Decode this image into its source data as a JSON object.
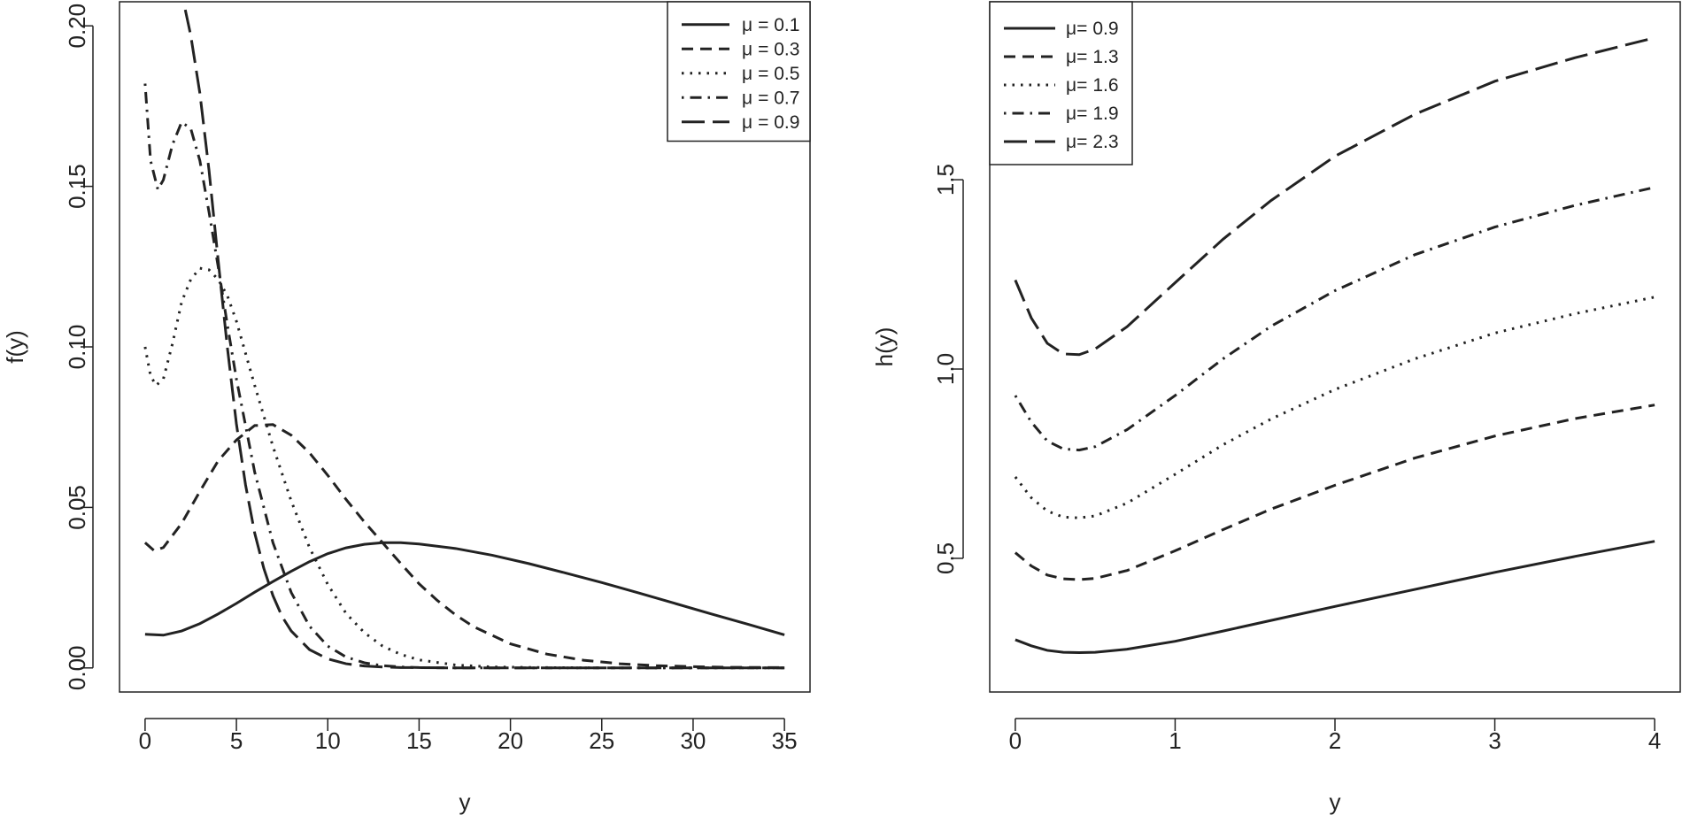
{
  "chart_data": [
    {
      "type": "line",
      "title": "",
      "xlabel": "y",
      "ylabel": "f(y)",
      "xlim": [
        -1.4,
        36.4
      ],
      "ylim": [
        -0.0075,
        0.2075
      ],
      "xticks": [
        0,
        5,
        10,
        15,
        20,
        25,
        30,
        35
      ],
      "xtick_labels": [
        "0",
        "5",
        "10",
        "15",
        "20",
        "25",
        "30",
        "35"
      ],
      "yticks": [
        0.0,
        0.05,
        0.1,
        0.15,
        0.2
      ],
      "ytick_labels": [
        "0.00",
        "0.05",
        "0.10",
        "0.15",
        "0.20"
      ],
      "legend_position": "top-right",
      "series": [
        {
          "name": "μ = 0.1",
          "legend_symbol": "μ",
          "legend_value": "= 0.1",
          "dash": "solid",
          "x": [
            0,
            1,
            2,
            3,
            4,
            5,
            6,
            7,
            8,
            9,
            10,
            11,
            12,
            13,
            14,
            15,
            17,
            19,
            21,
            23,
            25,
            27,
            29,
            31,
            33,
            35
          ],
          "y": [
            0.0105,
            0.0102,
            0.0115,
            0.0138,
            0.0168,
            0.0201,
            0.0236,
            0.0269,
            0.0301,
            0.0331,
            0.0356,
            0.0374,
            0.0385,
            0.039,
            0.039,
            0.0386,
            0.0372,
            0.0351,
            0.0325,
            0.0296,
            0.0266,
            0.0234,
            0.0201,
            0.0168,
            0.0136,
            0.0103
          ]
        },
        {
          "name": "μ = 0.3",
          "legend_symbol": "μ",
          "legend_value": "= 0.3",
          "dash": "dashed",
          "x": [
            0,
            0.5,
            1,
            2,
            3,
            4,
            5,
            6,
            7,
            8,
            9,
            10,
            11,
            12,
            13,
            14,
            15,
            16,
            17,
            18,
            20,
            22,
            24,
            26,
            28,
            30,
            32,
            35
          ],
          "y": [
            0.039,
            0.0365,
            0.0375,
            0.045,
            0.055,
            0.0645,
            0.071,
            0.0755,
            0.0758,
            0.0725,
            0.067,
            0.06,
            0.0525,
            0.0455,
            0.039,
            0.0325,
            0.0262,
            0.021,
            0.0165,
            0.0128,
            0.0075,
            0.0043,
            0.0024,
            0.0013,
            0.0007,
            0.0004,
            0.0002,
            0.0001
          ]
        },
        {
          "name": "μ = 0.5",
          "legend_symbol": "μ",
          "legend_value": "= 0.5",
          "dash": "dotted",
          "x": [
            0,
            0.3,
            0.6,
            1,
            1.5,
            2,
            2.5,
            3,
            3.5,
            4,
            4.5,
            5,
            6,
            7,
            8,
            9,
            10,
            11,
            12,
            13,
            14,
            15,
            17,
            19,
            22,
            26,
            30,
            35
          ],
          "y": [
            0.1,
            0.091,
            0.088,
            0.09,
            0.101,
            0.114,
            0.121,
            0.1245,
            0.124,
            0.121,
            0.116,
            0.108,
            0.088,
            0.069,
            0.052,
            0.0375,
            0.026,
            0.017,
            0.011,
            0.0068,
            0.0042,
            0.0025,
            0.0009,
            0.0003,
            0.0001,
            0.0,
            0.0,
            0.0
          ]
        },
        {
          "name": "μ = 0.7",
          "legend_symbol": "μ",
          "legend_value": "= 0.7",
          "dash": "dotdash",
          "x": [
            0,
            0.3,
            0.7,
            1,
            1.5,
            2,
            2.5,
            3,
            3.5,
            4,
            4.5,
            5,
            6,
            7,
            8,
            9,
            10,
            11,
            12,
            13,
            14,
            15,
            17,
            20,
            25,
            30,
            35
          ],
          "y": [
            0.182,
            0.158,
            0.149,
            0.152,
            0.163,
            0.17,
            0.168,
            0.158,
            0.142,
            0.125,
            0.107,
            0.09,
            0.061,
            0.039,
            0.0235,
            0.013,
            0.0068,
            0.0034,
            0.0016,
            0.0007,
            0.0003,
            0.0001,
            0.0,
            0.0,
            0.0,
            0.0,
            0.0
          ]
        },
        {
          "name": "μ = 0.9",
          "legend_symbol": "μ",
          "legend_value": "= 0.9",
          "dash": "longdash",
          "x": [
            2.2,
            2.5,
            3,
            3.5,
            4,
            4.5,
            5,
            5.5,
            6,
            6.5,
            7,
            7.5,
            8,
            9,
            10,
            11,
            12,
            13,
            14,
            15,
            17,
            20,
            25,
            30,
            35
          ],
          "y": [
            0.205,
            0.197,
            0.179,
            0.155,
            0.127,
            0.1,
            0.076,
            0.057,
            0.042,
            0.031,
            0.0225,
            0.016,
            0.0115,
            0.0057,
            0.0028,
            0.0013,
            0.0006,
            0.0003,
            0.0001,
            0.0001,
            0.0,
            0.0,
            0.0,
            0.0,
            0.0
          ]
        }
      ]
    },
    {
      "type": "line",
      "title": "",
      "xlabel": "y",
      "ylabel": "h(y)",
      "xlim": [
        -0.16,
        4.16
      ],
      "ylim": [
        0.147,
        1.97
      ],
      "xticks": [
        0,
        1,
        2,
        3,
        4
      ],
      "xtick_labels": [
        "0",
        "1",
        "2",
        "3",
        "4"
      ],
      "yticks": [
        0.5,
        1.0,
        1.5
      ],
      "ytick_labels": [
        "0.5",
        "1.0",
        "1.5"
      ],
      "legend_position": "top-left",
      "series": [
        {
          "name": "μ= 0.9",
          "legend_symbol": "μ=",
          "legend_value": "0.9",
          "dash": "solid",
          "x": [
            0,
            0.1,
            0.2,
            0.3,
            0.4,
            0.5,
            0.7,
            1.0,
            1.3,
            1.6,
            2.0,
            2.5,
            3.0,
            3.5,
            4.0
          ],
          "y": [
            0.285,
            0.269,
            0.257,
            0.252,
            0.251,
            0.252,
            0.26,
            0.281,
            0.308,
            0.336,
            0.373,
            0.418,
            0.463,
            0.505,
            0.545
          ]
        },
        {
          "name": "μ= 1.3",
          "legend_symbol": "μ=",
          "legend_value": "1.3",
          "dash": "dashed",
          "x": [
            0,
            0.1,
            0.2,
            0.3,
            0.4,
            0.5,
            0.7,
            1.0,
            1.3,
            1.6,
            2.0,
            2.5,
            3.0,
            3.5,
            4.0
          ],
          "y": [
            0.515,
            0.48,
            0.456,
            0.446,
            0.444,
            0.447,
            0.468,
            0.52,
            0.576,
            0.63,
            0.693,
            0.765,
            0.823,
            0.869,
            0.905
          ]
        },
        {
          "name": "μ= 1.6",
          "legend_symbol": "μ=",
          "legend_value": "1.6",
          "dash": "dotted",
          "x": [
            0,
            0.1,
            0.2,
            0.3,
            0.4,
            0.5,
            0.7,
            1.0,
            1.3,
            1.6,
            2.0,
            2.5,
            3.0,
            3.5,
            4.0
          ],
          "y": [
            0.715,
            0.66,
            0.625,
            0.609,
            0.607,
            0.612,
            0.646,
            0.722,
            0.8,
            0.868,
            0.946,
            1.027,
            1.095,
            1.146,
            1.19
          ]
        },
        {
          "name": "μ= 1.9",
          "legend_symbol": "μ=",
          "legend_value": "1.9",
          "dash": "dotdash",
          "x": [
            0,
            0.1,
            0.2,
            0.3,
            0.4,
            0.5,
            0.7,
            1.0,
            1.3,
            1.6,
            2.0,
            2.5,
            3.0,
            3.5,
            4.0
          ],
          "y": [
            0.93,
            0.86,
            0.81,
            0.789,
            0.786,
            0.795,
            0.84,
            0.93,
            1.027,
            1.113,
            1.207,
            1.302,
            1.375,
            1.432,
            1.48
          ]
        },
        {
          "name": "μ= 2.3",
          "legend_symbol": "μ=",
          "legend_value": "2.3",
          "dash": "longdash",
          "x": [
            0,
            0.1,
            0.2,
            0.3,
            0.4,
            0.5,
            0.7,
            1.0,
            1.3,
            1.6,
            2.0,
            2.5,
            3.0,
            3.5,
            4.0
          ],
          "y": [
            1.235,
            1.135,
            1.068,
            1.04,
            1.038,
            1.053,
            1.112,
            1.228,
            1.343,
            1.445,
            1.562,
            1.673,
            1.76,
            1.822,
            1.875
          ]
        }
      ]
    }
  ]
}
